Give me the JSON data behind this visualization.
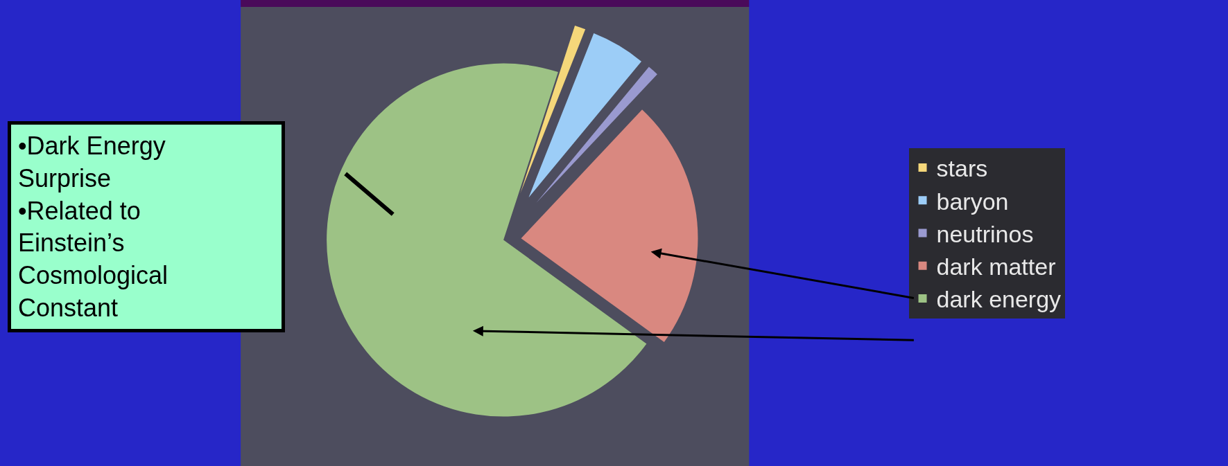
{
  "chart_data": {
    "type": "pie",
    "categories": [
      "stars",
      "baryon",
      "neutrinos",
      "dark matter",
      "dark energy"
    ],
    "values": [
      1,
      5,
      1,
      23,
      70
    ],
    "colors": [
      "#f5d77a",
      "#9ccdf7",
      "#9a9ad0",
      "#d98880",
      "#9dc285"
    ],
    "legend": "right",
    "annotations": [
      "•Dark Energy Surprise",
      "•Related to Einstein’s Cosmological Constant"
    ]
  }
}
